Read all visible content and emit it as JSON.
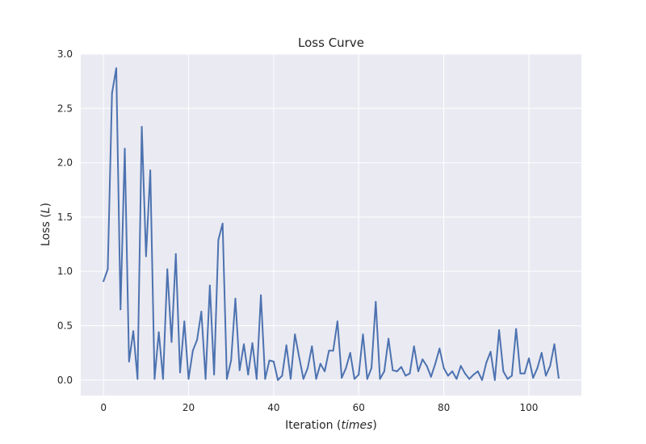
{
  "chart_data": {
    "type": "line",
    "title": "Loss Curve",
    "xlabel": "Iteration",
    "xlabel_math": "times",
    "ylabel": "Loss",
    "ylabel_math": "L",
    "xlim": [
      -5.35,
      112.35
    ],
    "ylim": [
      -0.143,
      3.0
    ],
    "xticks": [
      0,
      20,
      40,
      60,
      80,
      100
    ],
    "xtick_labels": [
      "0",
      "20",
      "40",
      "60",
      "80",
      "100"
    ],
    "yticks": [
      0.0,
      0.5,
      1.0,
      1.5,
      2.0,
      2.5,
      3.0
    ],
    "ytick_labels": [
      "0.0",
      "0.5",
      "1.0",
      "1.5",
      "2.0",
      "2.5",
      "3.0"
    ],
    "grid": true,
    "legend": null,
    "colors": {
      "line": "#4c72b0",
      "background": "#eaeaf2",
      "grid": "#ffffff"
    },
    "series": [
      {
        "x": [
          0,
          1,
          2,
          3,
          4,
          5,
          6,
          7,
          8,
          9,
          10,
          11,
          12,
          13,
          14,
          15,
          16,
          17,
          18,
          19,
          20,
          21,
          22,
          23,
          24,
          25,
          26,
          27,
          28,
          29,
          30,
          31,
          32,
          33,
          34,
          35,
          36,
          37,
          38,
          39,
          40,
          41,
          42,
          43,
          44,
          45,
          46,
          47,
          48,
          49,
          50,
          51,
          52,
          53,
          54,
          55,
          56,
          57,
          58,
          59,
          60,
          61,
          62,
          63,
          64,
          65,
          66,
          67,
          68,
          69,
          70,
          71,
          72,
          73,
          74,
          75,
          76,
          77,
          78,
          79,
          80,
          81,
          82,
          83,
          84,
          85,
          86,
          87,
          88,
          89,
          90,
          91,
          92,
          93,
          94,
          95,
          96,
          97,
          98,
          99,
          100,
          101,
          102,
          103,
          104,
          105,
          106,
          107
        ],
        "values": [
          0.91,
          1.02,
          2.64,
          2.87,
          0.65,
          2.13,
          0.17,
          0.45,
          0.01,
          2.33,
          1.14,
          1.93,
          0.01,
          0.44,
          0.01,
          1.02,
          0.35,
          1.16,
          0.07,
          0.54,
          0.01,
          0.27,
          0.37,
          0.63,
          0.01,
          0.87,
          0.05,
          1.29,
          1.44,
          0.01,
          0.18,
          0.75,
          0.09,
          0.33,
          0.05,
          0.34,
          0.01,
          0.78,
          0.01,
          0.18,
          0.17,
          0.0,
          0.04,
          0.32,
          0.01,
          0.42,
          0.21,
          0.01,
          0.11,
          0.31,
          0.01,
          0.15,
          0.08,
          0.27,
          0.27,
          0.54,
          0.02,
          0.11,
          0.25,
          0.01,
          0.05,
          0.42,
          0.01,
          0.11,
          0.72,
          0.01,
          0.08,
          0.38,
          0.09,
          0.08,
          0.12,
          0.04,
          0.06,
          0.31,
          0.08,
          0.19,
          0.13,
          0.03,
          0.15,
          0.29,
          0.11,
          0.04,
          0.08,
          0.01,
          0.13,
          0.06,
          0.01,
          0.05,
          0.08,
          0.0,
          0.16,
          0.26,
          0.0,
          0.46,
          0.08,
          0.01,
          0.04,
          0.47,
          0.06,
          0.06,
          0.2,
          0.02,
          0.11,
          0.25,
          0.04,
          0.13,
          0.33,
          0.02
        ]
      }
    ]
  }
}
